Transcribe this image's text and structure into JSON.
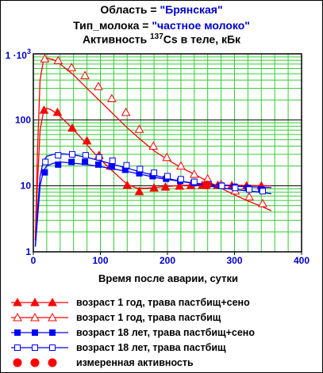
{
  "header": {
    "region_label": "Область = ",
    "region_value": "\"Брянская\"",
    "milk_label": "Тип_молока = ",
    "milk_value": "\"частное молоко\"",
    "activity_prefix": "Активность ",
    "activity_sup": "137",
    "activity_suffix": "Cs  в теле, кБк"
  },
  "chart_data": {
    "type": "line",
    "title": "Активность 137Cs в теле, кБк",
    "xlabel": "Время после аварии, сутки",
    "ylabel": "",
    "xlim": [
      0,
      400
    ],
    "ylim": [
      1,
      1000
    ],
    "yscale": "log",
    "x_ticks": [
      "0",
      "100",
      "200",
      "300",
      "400"
    ],
    "y_ticks": [
      {
        "value": 1,
        "label": "1"
      },
      {
        "value": 10,
        "label": "10"
      },
      {
        "value": 100,
        "label": "100"
      },
      {
        "value": 1000,
        "label": "1 ·10",
        "sup": "3"
      }
    ],
    "grid": true,
    "legend_position": "bottom",
    "series": [
      {
        "name": "возраст 1 год, трава пастбищ+сено",
        "color": "#ff0000",
        "marker": "triangle-filled",
        "x": [
          3,
          6,
          10,
          15,
          20,
          25,
          35,
          50,
          70,
          90,
          110,
          130,
          140,
          155,
          170,
          190,
          210,
          230,
          250,
          270,
          300,
          330,
          355
        ],
        "y": [
          1.5,
          10,
          70,
          130,
          150,
          145,
          125,
          90,
          55,
          32,
          20,
          13,
          10.5,
          9.2,
          9.2,
          9.6,
          10,
          10.2,
          10.3,
          10.3,
          10.2,
          10.1,
          10
        ],
        "marker_x": [
          16,
          36,
          58,
          80,
          98,
          115,
          140,
          158,
          180,
          197,
          218,
          235,
          252,
          275,
          296,
          318,
          340
        ],
        "marker_y": [
          140,
          130,
          75,
          48,
          29,
          20,
          10.2,
          8.2,
          9.3,
          9.6,
          9.9,
          10.1,
          10.2,
          10.2,
          10.1,
          10,
          10
        ]
      },
      {
        "name": "возраст 1 год, трава пастбищ",
        "color": "#ff0000",
        "marker": "triangle-open",
        "x": [
          3,
          6,
          10,
          15,
          20,
          30,
          40,
          60,
          80,
          100,
          120,
          140,
          160,
          180,
          200,
          220,
          240,
          260,
          280,
          300,
          320,
          340,
          355
        ],
        "y": [
          1.5,
          30,
          400,
          800,
          860,
          820,
          700,
          480,
          300,
          190,
          120,
          76,
          50,
          34,
          25,
          19,
          15,
          11.7,
          9.2,
          7.3,
          5.9,
          4.9,
          4.2
        ],
        "marker_x": [
          17,
          37,
          57,
          77,
          97,
          117,
          138,
          158,
          179,
          199,
          220,
          240,
          260,
          280,
          301,
          322,
          342
        ],
        "marker_y": [
          840,
          790,
          620,
          470,
          320,
          210,
          130,
          72,
          40,
          27,
          20,
          15,
          12.8,
          10.5,
          8.4,
          6.8,
          5.4
        ]
      },
      {
        "name": "возраст 18 лет, трава пастбищ+сено",
        "color": "#0000ff",
        "marker": "square-filled",
        "x": [
          3,
          6,
          10,
          15,
          20,
          30,
          40,
          60,
          80,
          100,
          120,
          140,
          160,
          180,
          200,
          220,
          240,
          260,
          280,
          300,
          330,
          355
        ],
        "y": [
          1.2,
          3,
          10,
          17,
          20,
          22,
          23,
          22,
          21,
          19.5,
          18,
          16.5,
          15,
          13.5,
          12.5,
          11.7,
          11,
          10.5,
          10.2,
          9.9,
          9.6,
          9.4
        ],
        "marker_x": [
          17,
          37,
          57,
          77,
          97,
          117,
          137,
          158,
          178,
          198,
          219,
          239,
          259,
          280,
          300,
          320,
          340
        ],
        "marker_y": [
          16,
          21,
          23,
          23,
          21,
          19.5,
          17.5,
          15.5,
          14,
          12.8,
          11.8,
          11,
          10.5,
          10.1,
          9.7,
          9.3,
          8.8
        ]
      },
      {
        "name": "возраст 18 лет, трава пастбищ",
        "color": "#0000ff",
        "marker": "square-open",
        "x": [
          3,
          6,
          10,
          15,
          20,
          30,
          45,
          60,
          80,
          100,
          120,
          140,
          160,
          180,
          200,
          220,
          240,
          260,
          280,
          300,
          330,
          355
        ],
        "y": [
          1.2,
          4,
          14,
          24,
          28,
          30,
          30.5,
          29.5,
          27,
          24,
          21,
          18.5,
          16.2,
          14.5,
          13,
          11.7,
          10.8,
          10,
          9.3,
          8.8,
          8.2,
          7.6
        ],
        "marker_x": [
          18,
          37,
          58,
          78,
          98,
          118,
          139,
          159,
          180,
          200,
          220,
          240,
          261,
          281,
          301,
          322,
          342
        ],
        "marker_y": [
          23,
          29,
          30,
          29,
          27,
          24,
          20.5,
          18,
          15.8,
          14,
          12.6,
          11.5,
          10.6,
          10,
          9.3,
          8.8,
          8.3
        ]
      },
      {
        "name": "измеренная активность",
        "color": "#ff0000",
        "marker": "circle-filled",
        "x": [],
        "y": [],
        "marker_x": [
          259
        ],
        "marker_y": [
          10.3
        ]
      }
    ]
  }
}
